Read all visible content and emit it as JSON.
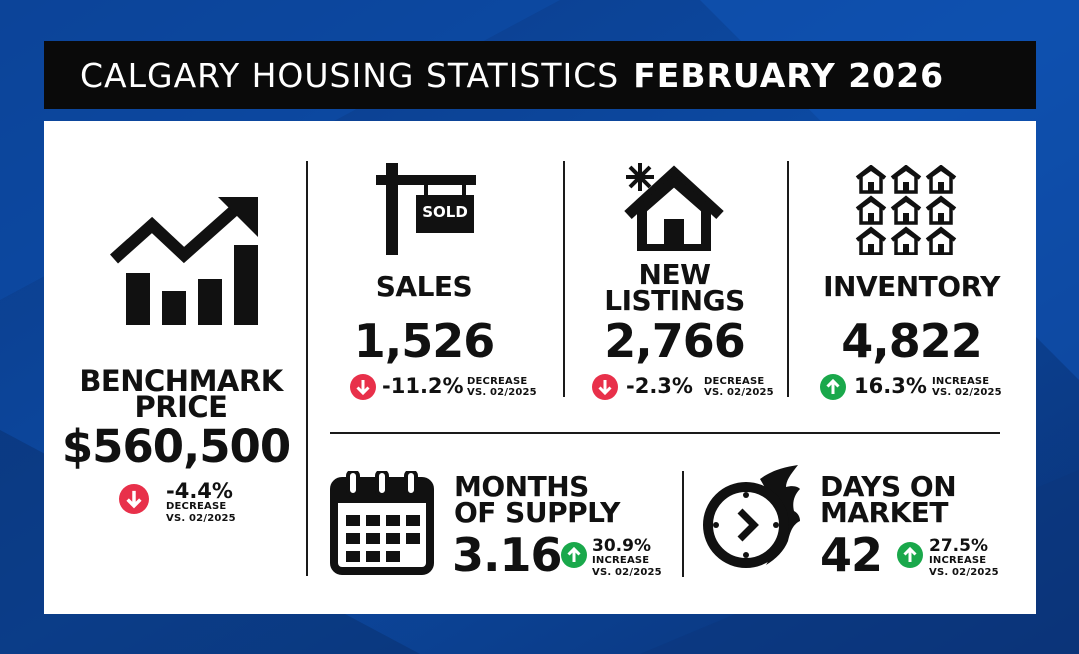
{
  "header": {
    "title_light": "CALGARY HOUSING STATISTICS",
    "title_bold": "FEBRUARY 2026"
  },
  "colors": {
    "background": "#0a3f8f",
    "down": "#e8304a",
    "up": "#1aa84b",
    "ink": "#111111"
  },
  "stats": {
    "benchmark": {
      "label_1": "BENCHMARK",
      "label_2": "PRICE",
      "value": "$560,500",
      "change": "-4.4%",
      "direction": "DECREASE",
      "vs": "VS. 02/2025",
      "icon": "rising-bar-chart-icon"
    },
    "sales": {
      "label": "SALES",
      "value": "1,526",
      "change": "-11.2%",
      "direction": "DECREASE",
      "vs": "VS. 02/2025",
      "icon": "sold-sign-icon",
      "sign_text": "SOLD"
    },
    "new_listings": {
      "label_1": "NEW",
      "label_2": "LISTINGS",
      "value": "2,766",
      "change": "-2.3%",
      "direction": "DECREASE",
      "vs": "VS. 02/2025",
      "icon": "new-house-icon"
    },
    "inventory": {
      "label": "INVENTORY",
      "value": "4,822",
      "change": "16.3%",
      "direction": "INCREASE",
      "vs": "VS. 02/2025",
      "icon": "houses-grid-icon"
    },
    "months_of_supply": {
      "label_1": "MONTHS",
      "label_2": "OF SUPPLY",
      "value": "3.16",
      "change": "30.9%",
      "direction": "INCREASE",
      "vs": "VS. 02/2025",
      "icon": "calendar-icon"
    },
    "days_on_market": {
      "label_1": "DAYS ON",
      "label_2": "MARKET",
      "value": "42",
      "change": "27.5%",
      "direction": "INCREASE",
      "vs": "VS. 02/2025",
      "icon": "fast-clock-icon"
    }
  }
}
